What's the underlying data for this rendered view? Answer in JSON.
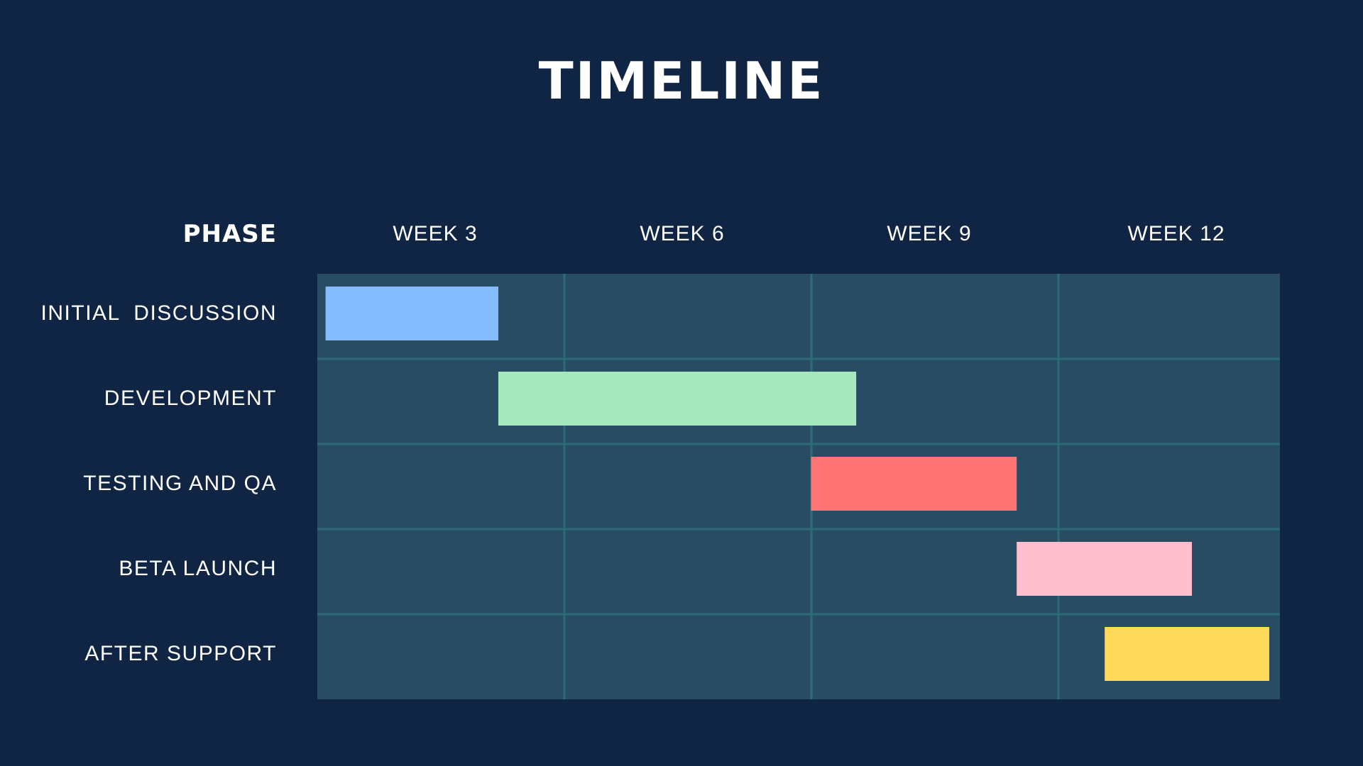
{
  "colors": {
    "background": "#102443",
    "grid_fill": "#274c63",
    "grid_line": "#2d6b76",
    "text": "#ffffff"
  },
  "chart_data": {
    "type": "gantt",
    "title": "TIMELINE",
    "row_header": "PHASE",
    "x_ticks": [
      "WEEK 3",
      "WEEK 6",
      "WEEK 9",
      "WEEK 12"
    ],
    "x_range": [
      0,
      11.7
    ],
    "grid": true,
    "tasks": [
      {
        "label": "INITIAL  DISCUSSION",
        "start": 0.1,
        "end": 2.2,
        "color": "#84bcff"
      },
      {
        "label": "DEVELOPMENT",
        "start": 2.2,
        "end": 6.55,
        "color": "#a6e7bd"
      },
      {
        "label": "TESTING AND QA",
        "start": 6.0,
        "end": 8.5,
        "color": "#ff7474"
      },
      {
        "label": "BETA LAUNCH",
        "start": 8.5,
        "end": 10.63,
        "color": "#ffbece"
      },
      {
        "label": "AFTER SUPPORT",
        "start": 9.57,
        "end": 11.57,
        "color": "#ffd95c"
      }
    ]
  }
}
